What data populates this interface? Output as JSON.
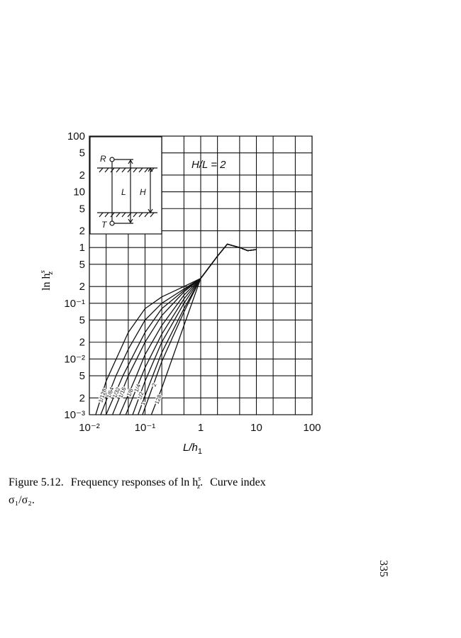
{
  "chart_data": {
    "type": "line",
    "log_x": true,
    "log_y": true,
    "grid": true,
    "color": "#111111",
    "annotation": "H/L = 2",
    "inset_labels": [
      "R",
      "T",
      "L",
      "H"
    ],
    "xlabel": {
      "text": "L/h",
      "sub": "1"
    },
    "ylabel": {
      "text": "ln h",
      "sup": "s",
      "sub": "z"
    },
    "xlim": [
      0.01,
      100
    ],
    "ylim": [
      0.001,
      100
    ],
    "xticks": [
      {
        "value": 0.01,
        "label": "10⁻²"
      },
      {
        "value": 0.1,
        "label": "10⁻¹"
      },
      1,
      10,
      100
    ],
    "x_minor_grid": [
      0.02,
      0.05,
      0.2,
      0.5,
      2,
      5,
      20,
      50
    ],
    "yticks": [
      100,
      {
        "value": 50,
        "label": "5"
      },
      {
        "value": 20,
        "label": "2"
      },
      10,
      5,
      2,
      1,
      {
        "value": 0.5,
        "label": "5"
      },
      {
        "value": 0.2,
        "label": "2"
      },
      {
        "value": 0.1,
        "label": "10⁻¹"
      },
      {
        "value": 0.05,
        "label": "5"
      },
      {
        "value": 0.02,
        "label": "2"
      },
      {
        "value": 0.01,
        "label": "10⁻²"
      },
      {
        "value": 0.005,
        "label": "5"
      },
      {
        "value": 0.002,
        "label": "2"
      },
      {
        "value": 0.001,
        "label": "10⁻³"
      }
    ],
    "series": [
      {
        "name": "1/128",
        "x": [
          0.013,
          0.02,
          0.05,
          0.1,
          0.2,
          0.5,
          1,
          2,
          3,
          5,
          7,
          10
        ],
        "values": [
          0.001,
          0.004,
          0.03,
          0.08,
          0.13,
          0.2,
          0.28,
          0.7,
          1.15,
          1.0,
          0.88,
          0.92
        ]
      },
      {
        "name": "1/64",
        "x": [
          0.016,
          0.03,
          0.05,
          0.1,
          0.2,
          0.5,
          1,
          2,
          3,
          5,
          7,
          10
        ],
        "values": [
          0.001,
          0.005,
          0.015,
          0.05,
          0.1,
          0.18,
          0.28,
          0.7,
          1.15,
          1.0,
          0.88,
          0.92
        ]
      },
      {
        "name": "1/32",
        "x": [
          0.02,
          0.04,
          0.07,
          0.1,
          0.2,
          0.5,
          1,
          2,
          3,
          5,
          7,
          10
        ],
        "values": [
          0.001,
          0.005,
          0.015,
          0.03,
          0.08,
          0.17,
          0.28,
          0.7,
          1.15,
          1.0,
          0.88,
          0.92
        ]
      },
      {
        "name": "1/16",
        "x": [
          0.026,
          0.05,
          0.1,
          0.2,
          0.5,
          1,
          2,
          3,
          5,
          7,
          10
        ],
        "values": [
          0.001,
          0.005,
          0.02,
          0.06,
          0.16,
          0.28,
          0.7,
          1.15,
          1.0,
          0.88,
          0.92
        ]
      },
      {
        "name": "1/8",
        "x": [
          0.035,
          0.07,
          0.1,
          0.2,
          0.5,
          1,
          2,
          3,
          5,
          7,
          10
        ],
        "values": [
          0.001,
          0.005,
          0.012,
          0.04,
          0.14,
          0.28,
          0.7,
          1.15,
          1.0,
          0.88,
          0.92
        ]
      },
      {
        "name": "1/4",
        "x": [
          0.045,
          0.1,
          0.2,
          0.5,
          1,
          2,
          3,
          5,
          7,
          10
        ],
        "values": [
          0.001,
          0.007,
          0.028,
          0.12,
          0.28,
          0.7,
          1.15,
          1.0,
          0.88,
          0.92
        ]
      },
      {
        "name": "1/2",
        "x": [
          0.06,
          0.1,
          0.2,
          0.5,
          1,
          2,
          3,
          5,
          7,
          10
        ],
        "values": [
          0.001,
          0.004,
          0.02,
          0.1,
          0.28,
          0.7,
          1.15,
          1.0,
          0.88,
          0.92
        ]
      },
      {
        "name": "1",
        "x": [
          0.075,
          0.1,
          0.2,
          0.5,
          1,
          2,
          3,
          5,
          7,
          10
        ],
        "values": [
          0.001,
          0.0022,
          0.013,
          0.08,
          0.28,
          0.7,
          1.15,
          1.0,
          0.88,
          0.92
        ]
      },
      {
        "name": "2",
        "x": [
          0.09,
          0.2,
          0.5,
          1,
          2,
          3,
          5,
          7,
          10
        ],
        "values": [
          0.001,
          0.009,
          0.07,
          0.28,
          0.7,
          1.15,
          1.0,
          0.88,
          0.92
        ]
      },
      {
        "name": "128",
        "x": [
          0.13,
          0.2,
          0.5,
          1,
          2,
          3,
          5,
          7,
          10
        ],
        "values": [
          0.001,
          0.003,
          0.04,
          0.28,
          0.7,
          1.15,
          1.0,
          0.88,
          0.92
        ]
      }
    ]
  },
  "caption": {
    "lead": "Figure 5.12.",
    "text": "Frequency responses of ln h",
    "sup": "s",
    "sub": "z",
    "tail": ".",
    "end": "Curve index",
    "line2": "σ₁/σ₂."
  },
  "page_number": "335"
}
